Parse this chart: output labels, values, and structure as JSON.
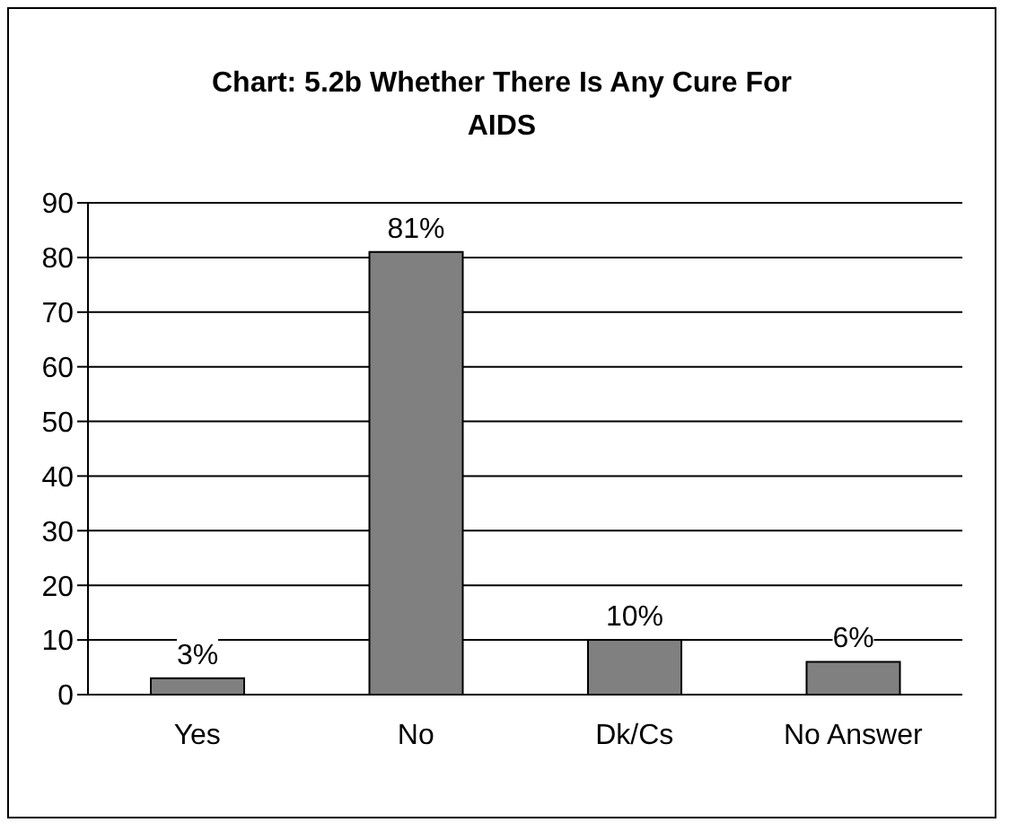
{
  "chart_data": {
    "type": "bar",
    "title": "Chart: 5.2b Whether There Is Any Cure For AIDS",
    "categories": [
      "Yes",
      "No",
      "Dk/Cs",
      "No Answer"
    ],
    "values": [
      3,
      81,
      10,
      6
    ],
    "value_labels": [
      "3%",
      "81%",
      "10%",
      "6%"
    ],
    "color": "#808080",
    "ylim": [
      0,
      90
    ],
    "yticks": [
      0,
      10,
      20,
      30,
      40,
      50,
      60,
      70,
      80,
      90
    ],
    "grid": "y"
  }
}
